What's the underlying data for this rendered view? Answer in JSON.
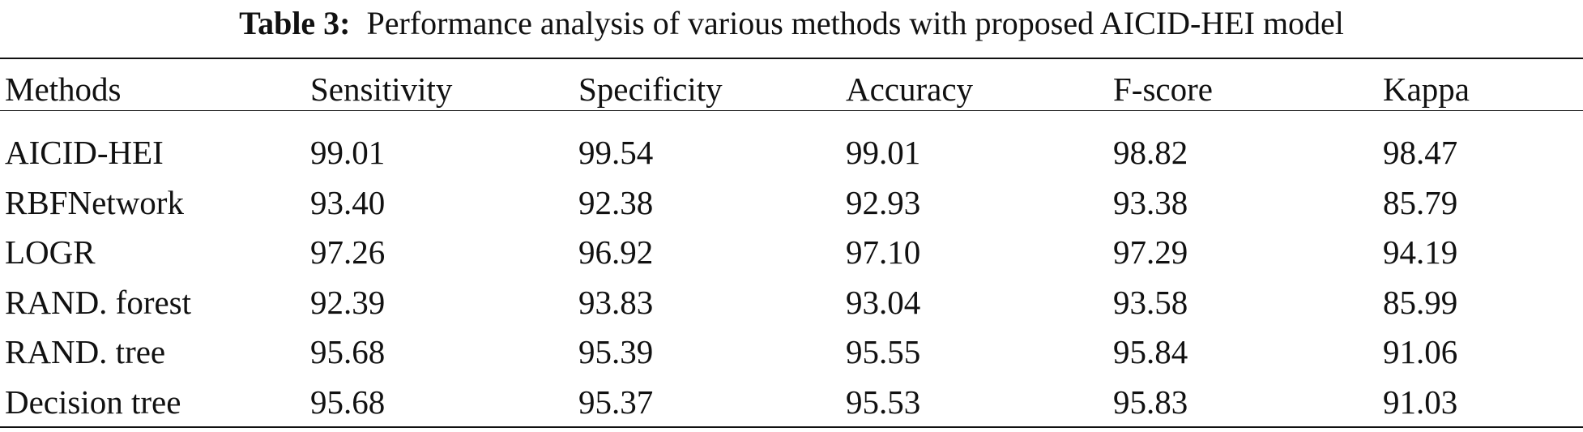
{
  "caption": {
    "label": "Table 3:",
    "text": "Performance analysis of various methods with proposed AICID-HEI model"
  },
  "table": {
    "header": [
      "Methods",
      "Sensitivity",
      "Specificity",
      "Accuracy",
      "F-score",
      "Kappa"
    ],
    "rows": [
      [
        "AICID-HEI",
        "99.01",
        "99.54",
        "99.01",
        "98.82",
        "98.47"
      ],
      [
        "RBFNetwork",
        "93.40",
        "92.38",
        "92.93",
        "93.38",
        "85.79"
      ],
      [
        "LOGR",
        "97.26",
        "96.92",
        "97.10",
        "97.29",
        "94.19"
      ],
      [
        "RAND. forest",
        "92.39",
        "93.83",
        "93.04",
        "93.58",
        "85.99"
      ],
      [
        "RAND. tree",
        "95.68",
        "95.39",
        "95.55",
        "95.84",
        "91.06"
      ],
      [
        "Decision tree",
        "95.68",
        "95.37",
        "95.53",
        "95.83",
        "91.03"
      ]
    ]
  }
}
